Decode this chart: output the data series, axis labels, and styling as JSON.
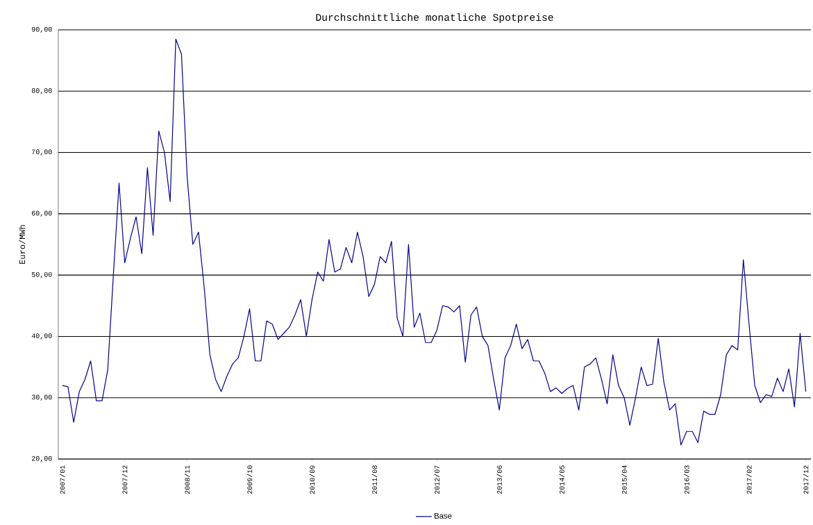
{
  "chart_data": {
    "type": "line",
    "title": "Durchschnittliche monatliche Spotpreise",
    "ylabel": "Euro/MWh",
    "categories": [
      "2007/01",
      null,
      null,
      null,
      null,
      null,
      null,
      null,
      null,
      null,
      null,
      "2007/12",
      null,
      null,
      null,
      null,
      null,
      null,
      null,
      null,
      null,
      null,
      "2008/11",
      null,
      null,
      null,
      null,
      null,
      null,
      null,
      null,
      null,
      null,
      "2009/10",
      null,
      null,
      null,
      null,
      null,
      null,
      null,
      null,
      null,
      null,
      "2010/09",
      null,
      null,
      null,
      null,
      null,
      null,
      null,
      null,
      null,
      null,
      "2011/08",
      null,
      null,
      null,
      null,
      null,
      null,
      null,
      null,
      null,
      null,
      "2012/07",
      null,
      null,
      null,
      null,
      null,
      null,
      null,
      null,
      null,
      null,
      "2013/06",
      null,
      null,
      null,
      null,
      null,
      null,
      null,
      null,
      null,
      null,
      "2014/05",
      null,
      null,
      null,
      null,
      null,
      null,
      null,
      null,
      null,
      null,
      "2015/04",
      null,
      null,
      null,
      null,
      null,
      null,
      null,
      null,
      null,
      null,
      "2016/03",
      null,
      null,
      null,
      null,
      null,
      null,
      null,
      null,
      null,
      null,
      "2017/02",
      null,
      null,
      null,
      null,
      null,
      null,
      null,
      null,
      null,
      "2017/12"
    ],
    "series": [
      {
        "name": "Base",
        "color": "#00008b",
        "values": [
          32,
          31.8,
          26,
          31,
          33,
          36,
          29.5,
          29.5,
          34.5,
          50,
          65,
          52,
          56,
          59.5,
          53.5,
          67.5,
          56.5,
          73.5,
          70,
          62,
          88.5,
          86,
          66,
          55,
          57,
          48,
          37,
          33,
          31,
          33.5,
          35.5,
          36.5,
          40,
          44.5,
          36,
          36,
          42.5,
          42,
          39.5,
          40.5,
          41.5,
          43.5,
          46,
          40,
          46,
          50.5,
          49,
          55.8,
          50.5,
          51,
          54.5,
          52,
          57,
          53,
          46.5,
          48.5,
          53,
          52,
          55.5,
          43,
          40,
          55,
          41.5,
          43.8,
          39,
          39,
          41,
          45,
          44.8,
          44,
          45,
          35.8,
          43.5,
          44.8,
          40,
          38.5,
          33,
          28,
          36.5,
          38.5,
          42,
          38,
          39.5,
          36,
          36,
          34,
          31,
          31.6,
          30.7,
          31.5,
          32,
          28,
          35,
          35.5,
          36.5,
          33,
          29,
          37,
          32,
          30,
          25.5,
          30,
          35,
          32,
          32.2,
          39.7,
          32.5,
          28,
          29,
          22.3,
          24.5,
          24.5,
          22.7,
          27.8,
          27.3,
          27.3,
          30.5,
          37,
          38.5,
          37.8,
          52.5,
          42,
          32,
          29.2,
          30.5,
          30.2,
          33.2,
          31,
          34.7,
          28.5,
          40.5,
          31
        ]
      }
    ],
    "ylim": [
      20,
      90
    ],
    "yticks": [
      {
        "value": 20,
        "label": "20,00"
      },
      {
        "value": 30,
        "label": "30,00"
      },
      {
        "value": 40,
        "label": "40,00"
      },
      {
        "value": 50,
        "label": "50,00"
      },
      {
        "value": 60,
        "label": "60,00"
      },
      {
        "value": 70,
        "label": "70,00"
      },
      {
        "value": 80,
        "label": "80,00"
      },
      {
        "value": 90,
        "label": "90,00"
      }
    ],
    "grid": "y",
    "legend": "bottom",
    "line_style": "solid"
  }
}
